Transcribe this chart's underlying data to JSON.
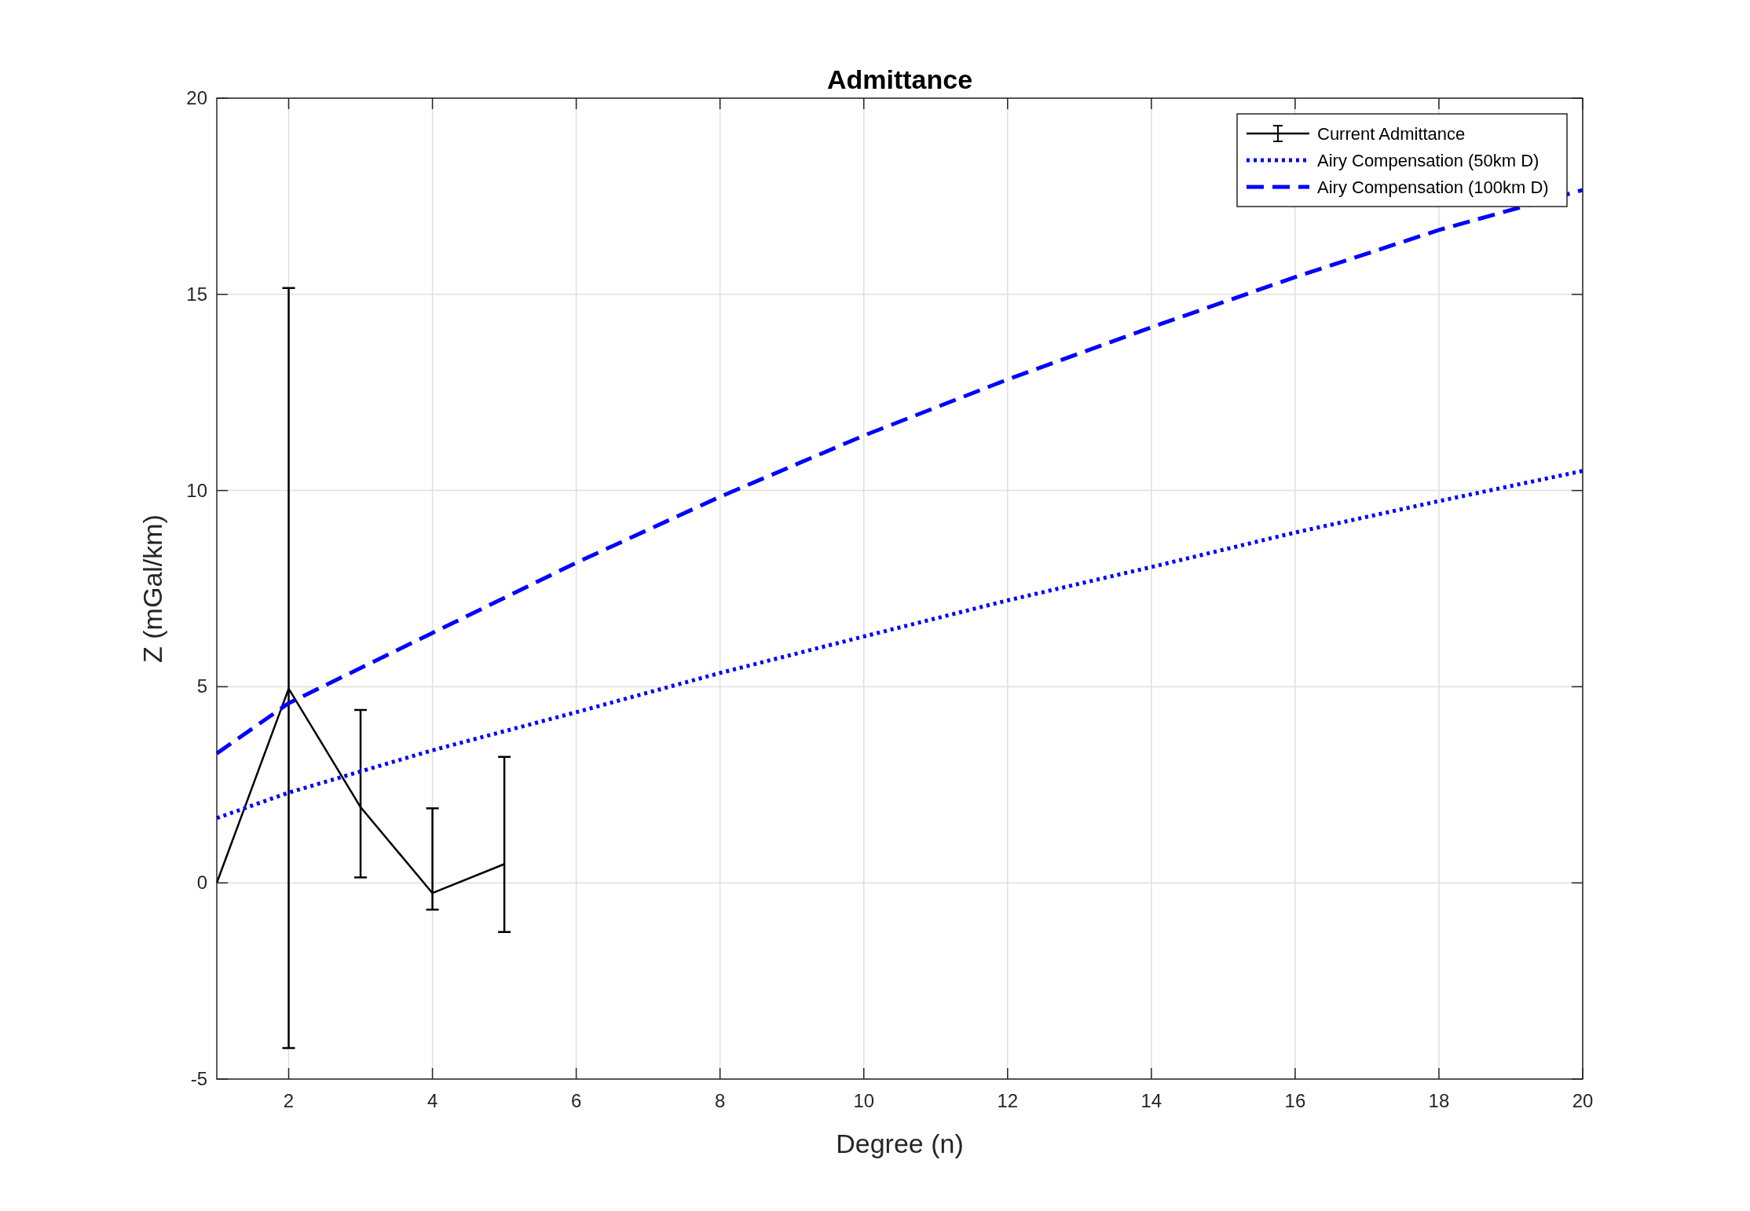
{
  "chart_data": {
    "type": "line",
    "title": "Admittance",
    "xlabel": "Degree (n)",
    "ylabel": "Z (mGal/km)",
    "xlim": [
      1,
      20
    ],
    "ylim": [
      -5,
      20
    ],
    "xticks": [
      2,
      4,
      6,
      8,
      10,
      12,
      14,
      16,
      18,
      20
    ],
    "yticks": [
      -5,
      0,
      5,
      10,
      15,
      20
    ],
    "grid": true,
    "legend": "top right",
    "marker": "none",
    "series": [
      {
        "name": "Current Admittance",
        "color": "#000000",
        "line_style": "solid",
        "x": [
          1,
          2,
          3,
          4,
          5
        ],
        "values": [
          0,
          4.95,
          1.93,
          -0.26,
          0.48
        ],
        "errors": [
          null,
          [
            -4.21,
            15.16
          ],
          [
            0.14,
            4.41
          ],
          [
            -0.68,
            1.9
          ],
          [
            -1.25,
            3.21
          ]
        ]
      },
      {
        "name": "Airy Compensation (50km D)",
        "color": "#0000ff",
        "line_style": "dotted",
        "x": [
          1,
          2,
          4,
          6,
          8,
          10,
          12,
          14,
          16,
          18,
          20
        ],
        "values": [
          1.65,
          2.3,
          3.38,
          4.35,
          5.35,
          6.28,
          7.2,
          8.05,
          8.93,
          9.73,
          10.5
        ]
      },
      {
        "name": "Airy Compensation (100km D)",
        "color": "#0000ff",
        "line_style": "dashed",
        "x": [
          1,
          2,
          4,
          6,
          8,
          10,
          12,
          14,
          16,
          18,
          20
        ],
        "values": [
          3.3,
          4.58,
          6.37,
          8.16,
          9.84,
          11.4,
          12.83,
          14.16,
          15.44,
          16.64,
          17.66
        ]
      }
    ]
  }
}
